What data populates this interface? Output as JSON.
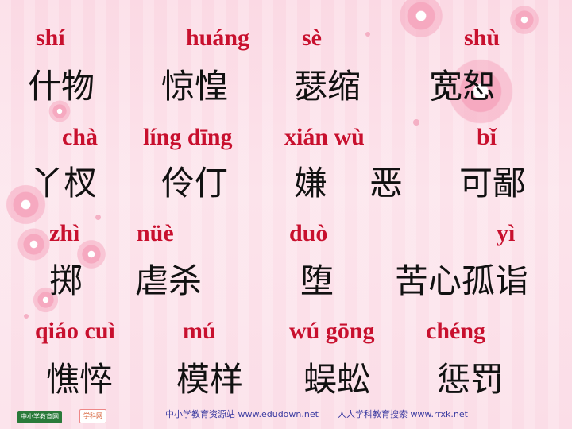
{
  "rows": [
    {
      "pinyin": [
        "shí",
        "huáng",
        "sè",
        "shù"
      ],
      "hanzi": [
        "什物",
        "惊惶",
        "瑟缩",
        "宽恕"
      ]
    },
    {
      "pinyin": [
        "chà",
        "líng dīng",
        "xián wù",
        "bǐ"
      ],
      "hanzi": [
        "丫杈",
        "伶仃",
        "嫌",
        "恶",
        "可鄙"
      ]
    },
    {
      "pinyin": [
        "zhì",
        "nüè",
        "duò",
        "yì"
      ],
      "hanzi": [
        "掷",
        "虐杀",
        "堕",
        "苦心孤诣"
      ]
    },
    {
      "pinyin": [
        "qiáo cuì",
        "mú",
        "wú gōng",
        "chéng"
      ],
      "hanzi": [
        "憔悴",
        "模样",
        "蜈蚣",
        "惩罚"
      ]
    }
  ],
  "footer": {
    "logo1": "中小学教育网",
    "logo2": "学科网",
    "site1": "中小学教育资源站 www.edudown.net",
    "site2": "人人学科教育搜索 www.rrxk.net"
  },
  "colors": {
    "pinyin": "#c8102e",
    "hanzi": "#111111",
    "background": "#fbd9e4"
  }
}
